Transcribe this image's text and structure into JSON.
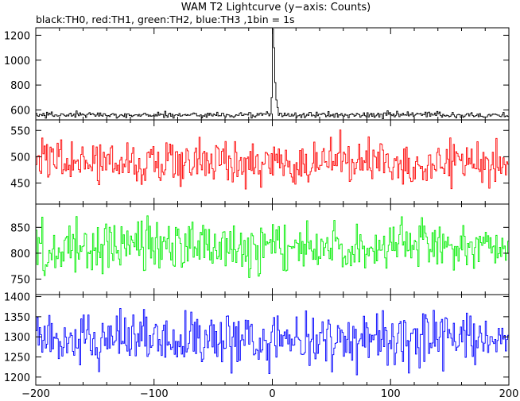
{
  "title": "WAM T2 Lightcurve (y−axis: Counts)",
  "subtitle": "black:TH0, red:TH1, green:TH2, blue:TH3 ,1bin = 1s",
  "chart_data": {
    "type": "line",
    "title": "WAM T2 Lightcurve (y−axis: Counts)",
    "subtitle": "black:TH0, red:TH1, green:TH2, blue:TH3 ,1bin = 1s",
    "xlim": [
      -200,
      200
    ],
    "x_ticks": [
      -200,
      -100,
      0,
      100,
      200
    ],
    "x_tick_labels": [
      "−200",
      "−100",
      "0",
      "100",
      "200"
    ],
    "bin_seconds": 1,
    "panels": [
      {
        "name": "TH0",
        "color": "#000000",
        "ylim": [
          520,
          1260
        ],
        "y_ticks": [
          600,
          800,
          1000,
          1200
        ],
        "y_tick_labels": [
          "600",
          "800",
          "1000",
          "1200"
        ],
        "baseline": 560,
        "noise": 12,
        "spikes": [
          {
            "x": -1,
            "y": 700
          },
          {
            "x": 0,
            "y": 1250
          },
          {
            "x": 1,
            "y": 1100
          },
          {
            "x": 2,
            "y": 820
          },
          {
            "x": 3,
            "y": 680
          },
          {
            "x": 4,
            "y": 620
          }
        ]
      },
      {
        "name": "TH1",
        "color": "#ff0000",
        "ylim": [
          410,
          570
        ],
        "y_ticks": [
          450,
          500,
          550
        ],
        "y_tick_labels": [
          "450",
          "500",
          "550"
        ],
        "baseline": 490,
        "noise": 22,
        "spikes": []
      },
      {
        "name": "TH2",
        "color": "#00ee00",
        "ylim": [
          720,
          895
        ],
        "y_ticks": [
          750,
          800,
          850
        ],
        "y_tick_labels": [
          "750",
          "800",
          "850"
        ],
        "baseline": 812,
        "noise": 25,
        "spikes": []
      },
      {
        "name": "TH3",
        "color": "#0000ff",
        "ylim": [
          1180,
          1405
        ],
        "y_ticks": [
          1200,
          1250,
          1300,
          1350,
          1400
        ],
        "y_tick_labels": [
          "1200",
          "1250",
          "1300",
          "1350",
          "1400"
        ],
        "baseline": 1293,
        "noise": 33,
        "spikes": []
      }
    ]
  }
}
